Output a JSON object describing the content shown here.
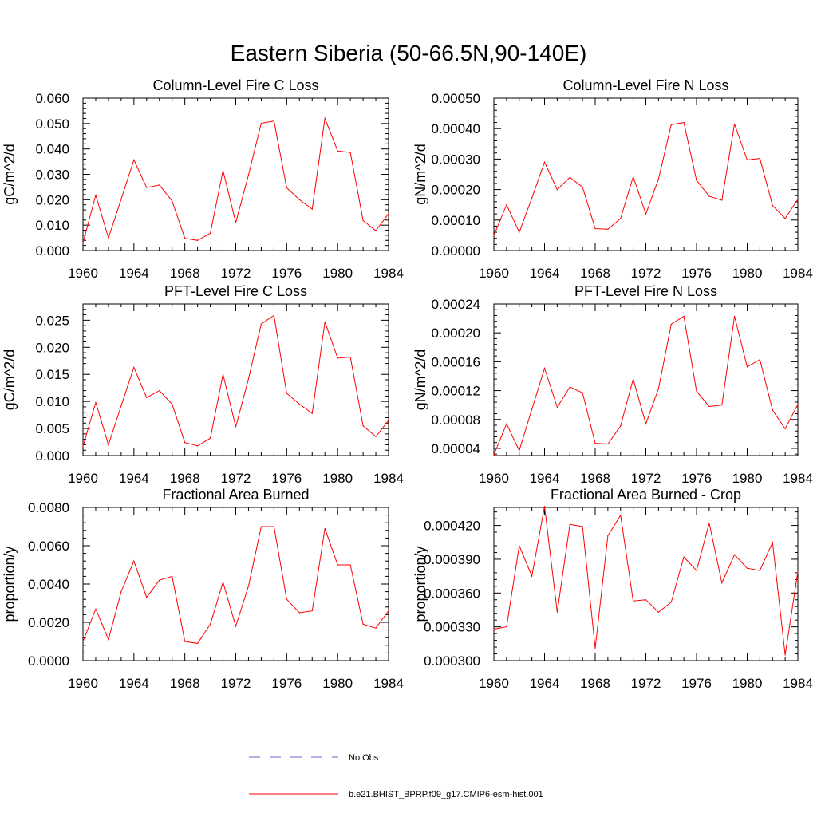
{
  "figure": {
    "title": "Eastern Siberia (50-66.5N,90-140E)",
    "legend": [
      {
        "label": "No Obs",
        "color": "#6666cc",
        "style": "dashed"
      },
      {
        "label": "b.e21.BHIST_BPRP.f09_g17.CMIP6-esm-hist.001",
        "color": "#ff0000",
        "style": "solid"
      }
    ]
  },
  "chart_data": [
    {
      "type": "line",
      "title": "Column-Level Fire C Loss",
      "ylabel": "gC/m^2/d",
      "xlim": [
        1960,
        1984
      ],
      "ylim": [
        0,
        0.06
      ],
      "yticks": [
        0.0,
        0.01,
        0.02,
        0.03,
        0.04,
        0.05,
        0.06
      ],
      "ytick_labels": [
        "0.000",
        "0.010",
        "0.020",
        "0.030",
        "0.040",
        "0.050",
        "0.060"
      ],
      "xticks": [
        1960,
        1964,
        1968,
        1972,
        1976,
        1980,
        1984
      ],
      "x": [
        1960,
        1961,
        1962,
        1963,
        1964,
        1965,
        1966,
        1967,
        1968,
        1969,
        1970,
        1971,
        1972,
        1973,
        1974,
        1975,
        1976,
        1977,
        1978,
        1979,
        1980,
        1981,
        1982,
        1983,
        1984
      ],
      "series": [
        {
          "name": "b.e21.BHIST_BPRP.f09_g17.CMIP6-esm-hist.001",
          "color": "#ff0000",
          "values": [
            0.003,
            0.0218,
            0.005,
            0.0202,
            0.0357,
            0.0248,
            0.0258,
            0.0195,
            0.0048,
            0.004,
            0.0068,
            0.0315,
            0.011,
            0.0298,
            0.0501,
            0.051,
            0.0247,
            0.02,
            0.0163,
            0.052,
            0.0392,
            0.0386,
            0.0118,
            0.0078,
            0.0145
          ]
        }
      ]
    },
    {
      "type": "line",
      "title": "Column-Level Fire N Loss",
      "ylabel": "gN/m^2/d",
      "xlim": [
        1960,
        1984
      ],
      "ylim": [
        0,
        0.0005
      ],
      "yticks": [
        0.0,
        0.0001,
        0.0002,
        0.0003,
        0.0004,
        0.0005
      ],
      "ytick_labels": [
        "0.00000",
        "0.00010",
        "0.00020",
        "0.00030",
        "0.00040",
        "0.00050"
      ],
      "xticks": [
        1960,
        1964,
        1968,
        1972,
        1976,
        1980,
        1984
      ],
      "x": [
        1960,
        1961,
        1962,
        1963,
        1964,
        1965,
        1966,
        1967,
        1968,
        1969,
        1970,
        1971,
        1972,
        1973,
        1974,
        1975,
        1976,
        1977,
        1978,
        1979,
        1980,
        1981,
        1982,
        1983,
        1984
      ],
      "series": [
        {
          "name": "b.e21.BHIST_BPRP.f09_g17.CMIP6-esm-hist.001",
          "color": "#ff0000",
          "values": [
            5e-05,
            0.00015,
            6e-05,
            0.000172,
            0.00029,
            0.0002,
            0.00024,
            0.000208,
            7.2e-05,
            7e-05,
            0.000105,
            0.000242,
            0.00012,
            0.000235,
            0.000413,
            0.00042,
            0.00023,
            0.000178,
            0.000165,
            0.000415,
            0.000297,
            0.000302,
            0.000148,
            0.000105,
            0.000168
          ]
        }
      ]
    },
    {
      "type": "line",
      "title": "PFT-Level Fire C Loss",
      "ylabel": "gC/m^2/d",
      "xlim": [
        1960,
        1984
      ],
      "ylim": [
        0,
        0.028
      ],
      "yticks": [
        0.0,
        0.005,
        0.01,
        0.015,
        0.02,
        0.025
      ],
      "ytick_labels": [
        "0.000",
        "0.005",
        "0.010",
        "0.015",
        "0.020",
        "0.025"
      ],
      "xticks": [
        1960,
        1964,
        1968,
        1972,
        1976,
        1980,
        1984
      ],
      "x": [
        1960,
        1961,
        1962,
        1963,
        1964,
        1965,
        1966,
        1967,
        1968,
        1969,
        1970,
        1971,
        1972,
        1973,
        1974,
        1975,
        1976,
        1977,
        1978,
        1979,
        1980,
        1981,
        1982,
        1983,
        1984
      ],
      "series": [
        {
          "name": "b.e21.BHIST_BPRP.f09_g17.CMIP6-esm-hist.001",
          "color": "#ff0000",
          "values": [
            0.0017,
            0.0098,
            0.002,
            0.0092,
            0.0163,
            0.0107,
            0.012,
            0.0095,
            0.0024,
            0.0018,
            0.0032,
            0.015,
            0.0053,
            0.0142,
            0.0243,
            0.0259,
            0.0115,
            0.0095,
            0.0078,
            0.0247,
            0.018,
            0.0182,
            0.0055,
            0.0035,
            0.0065
          ]
        }
      ]
    },
    {
      "type": "line",
      "title": "PFT-Level Fire N Loss",
      "ylabel": "gN/m^2/d",
      "xlim": [
        1960,
        1984
      ],
      "ylim": [
        3e-05,
        0.00024
      ],
      "yticks": [
        4e-05,
        8e-05,
        0.00012,
        0.00016,
        0.0002,
        0.00024
      ],
      "ytick_labels": [
        "0.00004",
        "0.00008",
        "0.00012",
        "0.00016",
        "0.00020",
        "0.00024"
      ],
      "xticks": [
        1960,
        1964,
        1968,
        1972,
        1976,
        1980,
        1984
      ],
      "x": [
        1960,
        1961,
        1962,
        1963,
        1964,
        1965,
        1966,
        1967,
        1968,
        1969,
        1970,
        1971,
        1972,
        1973,
        1974,
        1975,
        1976,
        1977,
        1978,
        1979,
        1980,
        1981,
        1982,
        1983,
        1984
      ],
      "series": [
        {
          "name": "b.e21.BHIST_BPRP.f09_g17.CMIP6-esm-hist.001",
          "color": "#ff0000",
          "values": [
            3.1e-05,
            7.4e-05,
            3.7e-05,
            9.4e-05,
            0.000151,
            9.7e-05,
            0.000125,
            0.000117,
            4.7e-05,
            4.6e-05,
            7.1e-05,
            0.000136,
            7.4e-05,
            0.000123,
            0.000212,
            0.000223,
            0.000119,
            9.8e-05,
            0.0001,
            0.000223,
            0.000153,
            0.000163,
            9.3e-05,
            6.7e-05,
            0.000101
          ]
        }
      ]
    },
    {
      "type": "line",
      "title": "Fractional Area Burned",
      "ylabel": "proportion/y",
      "xlim": [
        1960,
        1984
      ],
      "ylim": [
        0,
        0.008
      ],
      "yticks": [
        0.0,
        0.002,
        0.004,
        0.006,
        0.008
      ],
      "ytick_labels": [
        "0.0000",
        "0.0020",
        "0.0040",
        "0.0060",
        "0.0080"
      ],
      "xticks": [
        1960,
        1964,
        1968,
        1972,
        1976,
        1980,
        1984
      ],
      "x": [
        1960,
        1961,
        1962,
        1963,
        1964,
        1965,
        1966,
        1967,
        1968,
        1969,
        1970,
        1971,
        1972,
        1973,
        1974,
        1975,
        1976,
        1977,
        1978,
        1979,
        1980,
        1981,
        1982,
        1983,
        1984
      ],
      "series": [
        {
          "name": "b.e21.BHIST_BPRP.f09_g17.CMIP6-esm-hist.001",
          "color": "#ff0000",
          "values": [
            0.001,
            0.0027,
            0.0011,
            0.0036,
            0.0052,
            0.0033,
            0.0042,
            0.0044,
            0.001,
            0.0009,
            0.0019,
            0.0041,
            0.0018,
            0.0039,
            0.007,
            0.007,
            0.0032,
            0.0025,
            0.0026,
            0.0069,
            0.005,
            0.005,
            0.0019,
            0.0017,
            0.0026
          ]
        }
      ]
    },
    {
      "type": "line",
      "title": "Fractional Area Burned - Crop",
      "ylabel": "proportion/y",
      "xlim": [
        1960,
        1984
      ],
      "ylim": [
        0.0003,
        0.000436
      ],
      "yticks": [
        0.0003,
        0.00033,
        0.00036,
        0.00039,
        0.00042
      ],
      "ytick_labels": [
        "0.000300",
        "0.000330",
        "0.000360",
        "0.000390",
        "0.000420"
      ],
      "xticks": [
        1960,
        1964,
        1968,
        1972,
        1976,
        1980,
        1984
      ],
      "x": [
        1960,
        1961,
        1962,
        1963,
        1964,
        1965,
        1966,
        1967,
        1968,
        1969,
        1970,
        1971,
        1972,
        1973,
        1974,
        1975,
        1976,
        1977,
        1978,
        1979,
        1980,
        1981,
        1982,
        1983,
        1984
      ],
      "series": [
        {
          "name": "b.e21.BHIST_BPRP.f09_g17.CMIP6-esm-hist.001",
          "color": "#ff0000",
          "values": [
            0.000328,
            0.00033,
            0.000402,
            0.000375,
            0.000437,
            0.000343,
            0.000421,
            0.000419,
            0.000311,
            0.000411,
            0.000429,
            0.000353,
            0.000354,
            0.000343,
            0.000352,
            0.000392,
            0.00038,
            0.000422,
            0.000369,
            0.000394,
            0.000382,
            0.00038,
            0.000405,
            0.000305,
            0.000379
          ]
        }
      ]
    }
  ]
}
